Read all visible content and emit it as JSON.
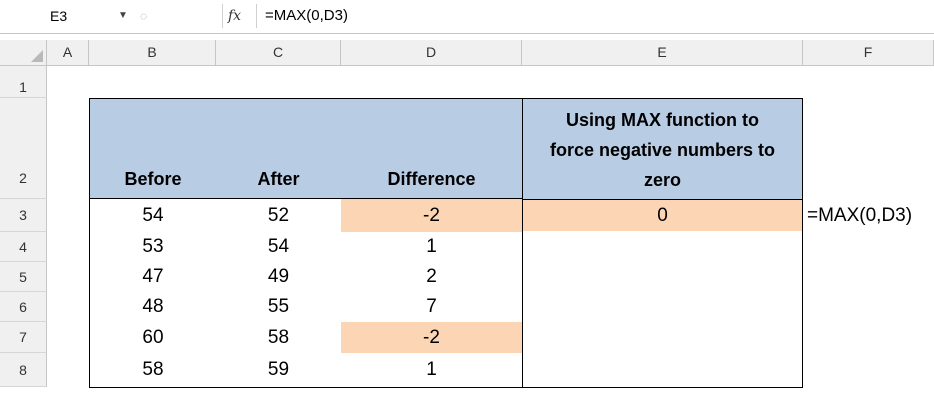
{
  "formula_bar": {
    "name_box": "E3",
    "fx_label": "fx",
    "formula": "=MAX(0,D3)"
  },
  "column_headers": [
    "A",
    "B",
    "C",
    "D",
    "E",
    "F"
  ],
  "row_headers": [
    "1",
    "2",
    "3",
    "4",
    "5",
    "6",
    "7",
    "8"
  ],
  "table": {
    "headers": {
      "b": "Before",
      "c": "After",
      "d": "Difference",
      "e_line1": "Using MAX function to",
      "e_line2": "force negative numbers to",
      "e_line3": "zero"
    },
    "rows": [
      {
        "before": "54",
        "after": "52",
        "difference": "-2",
        "result": "0"
      },
      {
        "before": "53",
        "after": "54",
        "difference": "1",
        "result": ""
      },
      {
        "before": "47",
        "after": "49",
        "difference": "2",
        "result": ""
      },
      {
        "before": "48",
        "after": "55",
        "difference": "7",
        "result": ""
      },
      {
        "before": "60",
        "after": "58",
        "difference": "-2",
        "result": ""
      },
      {
        "before": "58",
        "after": "59",
        "difference": "1",
        "result": ""
      }
    ]
  },
  "f3_annotation": "=MAX(0,D3)",
  "colors": {
    "header_fill": "#b8cce4",
    "highlight_fill": "#fcd5b4"
  }
}
